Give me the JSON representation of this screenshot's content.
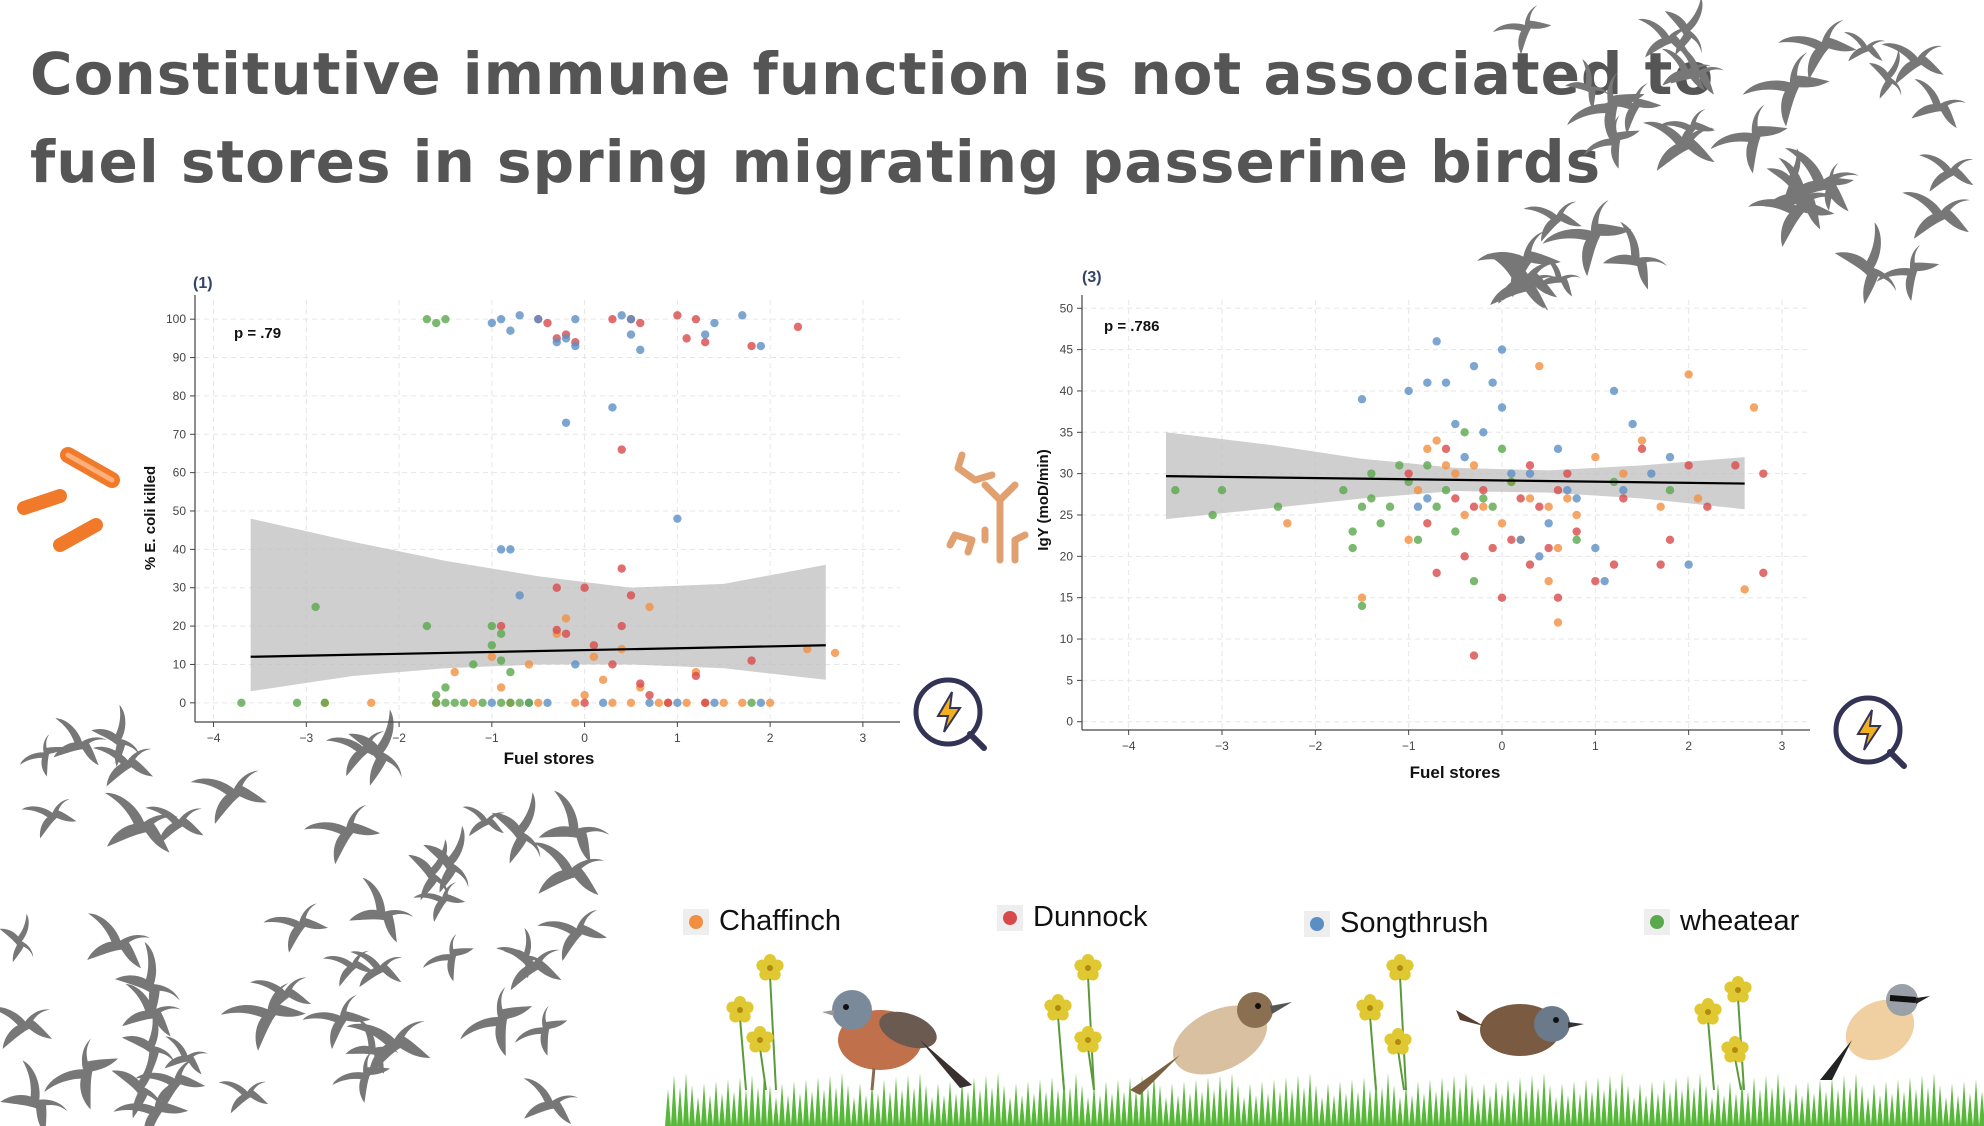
{
  "title_lines": [
    "Constitutive immune function is not associated to",
    "fuel stores in spring migrating passerine birds"
  ],
  "legend": [
    {
      "name": "Chaffinch",
      "color": "#f28e3f"
    },
    {
      "name": "Dunnock",
      "color": "#d84a4a"
    },
    {
      "name": "Songthrush",
      "color": "#5b8ec4"
    },
    {
      "name": "wheatear",
      "color": "#5aa84c"
    }
  ],
  "colors": {
    "chaffinch": "#f28e3f",
    "dunnock": "#d84a4a",
    "songthrush": "#5b8ec4",
    "wheatear": "#5aa84c",
    "ribbon": "#bfbfbf",
    "fit_line": "#000000",
    "bird_silhouette": "#777777",
    "bacteria": "#f07a2a",
    "antibody": "#e0a070",
    "lens_icon": "#333355"
  },
  "icons": [
    "bacteria-icon",
    "antibody-icon",
    "lightning-search-icon",
    "bird-flock-icon",
    "flower-icon",
    "grass-icon"
  ],
  "chart_data": [
    {
      "type": "scatter",
      "panel_label": "(1)",
      "annotation": "p = .79",
      "xlabel": "Fuel stores",
      "ylabel": "% E. coli killed",
      "xlim": [
        -4.2,
        3.4
      ],
      "ylim": [
        -5,
        105
      ],
      "x_ticks": [
        -4,
        -3,
        -2,
        -1,
        0,
        1,
        2,
        3
      ],
      "x_tick_labels": [
        "−4",
        "−3",
        "−2",
        "−1",
        "0",
        "1",
        "2",
        "3"
      ],
      "y_ticks": [
        0,
        10,
        20,
        30,
        40,
        50,
        60,
        70,
        80,
        90,
        100
      ],
      "grid": true,
      "fit_line": {
        "x": [
          -3.6,
          2.6
        ],
        "y": [
          12,
          15
        ]
      },
      "ribbon": {
        "x": [
          -3.6,
          -2.5,
          -1.5,
          -0.5,
          0.5,
          1.5,
          2.6
        ],
        "upper": [
          48,
          42,
          37,
          33,
          30,
          31,
          36
        ],
        "lower": [
          3,
          7,
          9,
          10,
          10,
          9,
          6
        ]
      },
      "series": [
        {
          "name": "Chaffinch",
          "points": [
            [
              -2.8,
              0
            ],
            [
              -2.3,
              0
            ],
            [
              -1.6,
              0
            ],
            [
              -1.4,
              8
            ],
            [
              -1.2,
              0
            ],
            [
              -1.0,
              12
            ],
            [
              -0.9,
              4
            ],
            [
              -0.8,
              0
            ],
            [
              -0.6,
              10
            ],
            [
              -0.5,
              0
            ],
            [
              -0.3,
              18
            ],
            [
              -0.2,
              22
            ],
            [
              -0.1,
              0
            ],
            [
              0.0,
              2
            ],
            [
              0.1,
              12
            ],
            [
              0.2,
              6
            ],
            [
              0.3,
              0
            ],
            [
              0.4,
              14
            ],
            [
              0.5,
              0
            ],
            [
              0.6,
              4
            ],
            [
              0.7,
              25
            ],
            [
              0.8,
              0
            ],
            [
              0.9,
              0
            ],
            [
              1.1,
              0
            ],
            [
              1.2,
              8
            ],
            [
              1.3,
              0
            ],
            [
              1.5,
              0
            ],
            [
              1.7,
              0
            ],
            [
              2.0,
              0
            ],
            [
              2.4,
              14
            ],
            [
              2.7,
              13
            ]
          ]
        },
        {
          "name": "Dunnock",
          "points": [
            [
              -0.5,
              100
            ],
            [
              -0.4,
              99
            ],
            [
              -0.3,
              95
            ],
            [
              -0.2,
              96
            ],
            [
              -0.1,
              94
            ],
            [
              0.3,
              100
            ],
            [
              0.5,
              100
            ],
            [
              0.6,
              99
            ],
            [
              1.0,
              101
            ],
            [
              1.1,
              95
            ],
            [
              1.2,
              100
            ],
            [
              1.3,
              94
            ],
            [
              1.8,
              93
            ],
            [
              2.3,
              98
            ],
            [
              0.4,
              66
            ],
            [
              0.4,
              35
            ],
            [
              0.5,
              28
            ],
            [
              0.0,
              30
            ],
            [
              -0.3,
              30
            ],
            [
              -0.2,
              18
            ],
            [
              0.1,
              15
            ],
            [
              0.3,
              10
            ],
            [
              0.4,
              20
            ],
            [
              0.6,
              5
            ],
            [
              0.7,
              2
            ],
            [
              0.9,
              0
            ],
            [
              1.2,
              7
            ],
            [
              1.3,
              0
            ],
            [
              1.8,
              11
            ],
            [
              -0.9,
              20
            ],
            [
              -0.3,
              19
            ],
            [
              0.0,
              0
            ]
          ]
        },
        {
          "name": "Songthrush",
          "points": [
            [
              -1.0,
              99
            ],
            [
              -0.9,
              100
            ],
            [
              -0.8,
              97
            ],
            [
              -0.7,
              101
            ],
            [
              -0.5,
              100
            ],
            [
              -0.3,
              94
            ],
            [
              -0.2,
              95
            ],
            [
              -0.1,
              100
            ],
            [
              -0.1,
              93
            ],
            [
              0.4,
              101
            ],
            [
              0.5,
              100
            ],
            [
              0.5,
              96
            ],
            [
              0.6,
              92
            ],
            [
              1.3,
              96
            ],
            [
              1.4,
              99
            ],
            [
              1.7,
              101
            ],
            [
              1.9,
              93
            ],
            [
              0.3,
              77
            ],
            [
              -0.2,
              73
            ],
            [
              1.0,
              48
            ],
            [
              -0.9,
              40
            ],
            [
              -0.8,
              40
            ],
            [
              -0.7,
              28
            ],
            [
              -0.1,
              10
            ],
            [
              0.2,
              0
            ],
            [
              -0.6,
              0
            ],
            [
              -0.4,
              0
            ],
            [
              0.7,
              0
            ],
            [
              1.0,
              0
            ],
            [
              1.4,
              0
            ],
            [
              1.9,
              0
            ],
            [
              -1.0,
              0
            ]
          ]
        },
        {
          "name": "wheatear",
          "points": [
            [
              -1.7,
              100
            ],
            [
              -1.6,
              99
            ],
            [
              -1.5,
              100
            ],
            [
              -3.7,
              0
            ],
            [
              -3.1,
              0
            ],
            [
              -2.9,
              25
            ],
            [
              -2.8,
              0
            ],
            [
              -1.7,
              20
            ],
            [
              -1.6,
              0
            ],
            [
              -1.5,
              4
            ],
            [
              -1.4,
              0
            ],
            [
              -1.3,
              0
            ],
            [
              -1.2,
              10
            ],
            [
              -1.1,
              0
            ],
            [
              -1.0,
              20
            ],
            [
              -0.9,
              0
            ],
            [
              -0.9,
              18
            ],
            [
              -0.8,
              0
            ],
            [
              -0.8,
              8
            ],
            [
              -0.7,
              0
            ],
            [
              -0.6,
              0
            ],
            [
              -1.5,
              0
            ],
            [
              -1.6,
              2
            ],
            [
              -1.0,
              15
            ],
            [
              -0.9,
              11
            ],
            [
              1.8,
              0
            ]
          ]
        }
      ]
    },
    {
      "type": "scatter",
      "panel_label": "(3)",
      "annotation": "p = .786",
      "xlabel": "Fuel stores",
      "ylabel": "IgY (moD/min)",
      "xlim": [
        -4.5,
        3.3
      ],
      "ylim": [
        -1,
        51
      ],
      "x_ticks": [
        -4,
        -3,
        -2,
        -1,
        0,
        1,
        2,
        3
      ],
      "x_tick_labels": [
        "−4",
        "−3",
        "−2",
        "−1",
        "0",
        "1",
        "2",
        "3"
      ],
      "y_ticks": [
        0,
        5,
        10,
        15,
        20,
        25,
        30,
        35,
        40,
        45,
        50
      ],
      "grid": true,
      "fit_line": {
        "x": [
          -3.6,
          2.6
        ],
        "y": [
          29.7,
          28.8
        ]
      },
      "ribbon": {
        "x": [
          -3.6,
          -2.5,
          -1.5,
          -0.5,
          0.5,
          1.5,
          2.6
        ],
        "upper": [
          35.0,
          33.5,
          31.8,
          30.7,
          30.4,
          31.0,
          32.0
        ],
        "lower": [
          24.5,
          25.8,
          27.0,
          27.9,
          27.7,
          27.0,
          25.7
        ]
      },
      "series": [
        {
          "name": "Chaffinch",
          "points": [
            [
              -2.3,
              24
            ],
            [
              -1.5,
              15
            ],
            [
              -1.0,
              22
            ],
            [
              -0.8,
              33
            ],
            [
              -0.7,
              34
            ],
            [
              -0.6,
              31
            ],
            [
              -0.5,
              30
            ],
            [
              -0.4,
              25
            ],
            [
              -0.3,
              31
            ],
            [
              -0.2,
              26
            ],
            [
              0.0,
              24
            ],
            [
              0.1,
              29
            ],
            [
              0.2,
              22
            ],
            [
              0.3,
              27
            ],
            [
              0.4,
              43
            ],
            [
              0.5,
              26
            ],
            [
              0.6,
              21
            ],
            [
              0.7,
              27
            ],
            [
              0.8,
              25
            ],
            [
              1.0,
              32
            ],
            [
              1.3,
              30
            ],
            [
              1.5,
              34
            ],
            [
              1.7,
              26
            ],
            [
              2.0,
              42
            ],
            [
              2.1,
              27
            ],
            [
              2.6,
              16
            ],
            [
              2.7,
              38
            ],
            [
              -0.9,
              28
            ],
            [
              0.5,
              17
            ],
            [
              0.6,
              12
            ]
          ]
        },
        {
          "name": "Dunnock",
          "points": [
            [
              -1.0,
              30
            ],
            [
              -0.8,
              24
            ],
            [
              -0.7,
              18
            ],
            [
              -0.5,
              27
            ],
            [
              -0.4,
              20
            ],
            [
              -0.3,
              26
            ],
            [
              -0.3,
              8
            ],
            [
              -0.2,
              28
            ],
            [
              -0.1,
              21
            ],
            [
              0.0,
              15
            ],
            [
              0.1,
              22
            ],
            [
              0.2,
              27
            ],
            [
              0.3,
              19
            ],
            [
              0.4,
              26
            ],
            [
              0.5,
              21
            ],
            [
              0.6,
              15
            ],
            [
              0.7,
              30
            ],
            [
              0.8,
              23
            ],
            [
              1.0,
              17
            ],
            [
              1.2,
              19
            ],
            [
              1.3,
              27
            ],
            [
              1.5,
              33
            ],
            [
              1.7,
              19
            ],
            [
              1.8,
              22
            ],
            [
              2.0,
              31
            ],
            [
              2.2,
              26
            ],
            [
              2.5,
              31
            ],
            [
              2.8,
              18
            ],
            [
              2.8,
              30
            ],
            [
              -0.6,
              33
            ],
            [
              0.6,
              28
            ],
            [
              0.3,
              31
            ]
          ]
        },
        {
          "name": "Songthrush",
          "points": [
            [
              -1.5,
              39
            ],
            [
              -1.0,
              40
            ],
            [
              -0.9,
              26
            ],
            [
              -0.8,
              41
            ],
            [
              -0.7,
              46
            ],
            [
              -0.6,
              41
            ],
            [
              -0.5,
              36
            ],
            [
              -0.4,
              32
            ],
            [
              -0.3,
              43
            ],
            [
              -0.2,
              35
            ],
            [
              -0.1,
              41
            ],
            [
              0.0,
              45
            ],
            [
              0.0,
              38
            ],
            [
              0.1,
              30
            ],
            [
              0.2,
              22
            ],
            [
              0.3,
              30
            ],
            [
              0.4,
              20
            ],
            [
              0.6,
              33
            ],
            [
              0.7,
              28
            ],
            [
              0.8,
              27
            ],
            [
              1.0,
              21
            ],
            [
              1.1,
              17
            ],
            [
              1.2,
              40
            ],
            [
              1.3,
              28
            ],
            [
              1.4,
              36
            ],
            [
              1.6,
              30
            ],
            [
              1.8,
              32
            ],
            [
              2.0,
              19
            ],
            [
              -0.8,
              27
            ],
            [
              0.5,
              24
            ]
          ]
        },
        {
          "name": "wheatear",
          "points": [
            [
              -3.5,
              28
            ],
            [
              -3.1,
              25
            ],
            [
              -3.0,
              28
            ],
            [
              -2.4,
              26
            ],
            [
              -1.7,
              28
            ],
            [
              -1.6,
              23
            ],
            [
              -1.5,
              26
            ],
            [
              -1.4,
              30
            ],
            [
              -1.3,
              24
            ],
            [
              -1.2,
              26
            ],
            [
              -1.1,
              31
            ],
            [
              -1.0,
              29
            ],
            [
              -0.9,
              22
            ],
            [
              -0.8,
              31
            ],
            [
              -0.7,
              26
            ],
            [
              -0.6,
              28
            ],
            [
              -0.5,
              23
            ],
            [
              -0.4,
              35
            ],
            [
              -0.3,
              17
            ],
            [
              -0.2,
              27
            ],
            [
              -0.1,
              26
            ],
            [
              0.0,
              33
            ],
            [
              0.1,
              29
            ],
            [
              -1.5,
              14
            ],
            [
              -1.6,
              21
            ],
            [
              -1.4,
              27
            ],
            [
              0.8,
              22
            ],
            [
              1.2,
              29
            ],
            [
              1.8,
              28
            ]
          ]
        }
      ]
    }
  ]
}
